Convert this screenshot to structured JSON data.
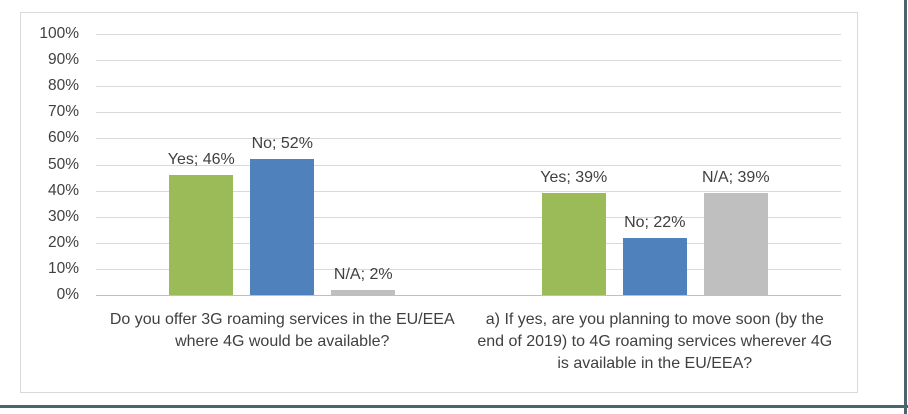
{
  "chart_data": {
    "type": "bar",
    "title": "",
    "categories": [
      "Do you offer 3G roaming services in the EU/EEA where 4G would be available?",
      "a) If yes, are you planning to move soon (by the end of 2019) to 4G roaming services wherever 4G is available in the EU/EEA?"
    ],
    "series": [
      {
        "name": "Yes",
        "color": "#9BBB59",
        "values": [
          46,
          39
        ]
      },
      {
        "name": "No",
        "color": "#4F81BD",
        "values": [
          52,
          22
        ]
      },
      {
        "name": "N/A",
        "color": "#BFBFBF",
        "values": [
          2,
          39
        ]
      }
    ],
    "data_labels": [
      [
        "Yes; 46%",
        "No; 52%",
        "N/A; 2%"
      ],
      [
        "Yes; 39%",
        "No; 22%",
        "N/A; 39%"
      ]
    ],
    "y_axis": {
      "min": 0,
      "max": 100,
      "step": 10,
      "tick_labels": [
        "0%",
        "10%",
        "20%",
        "30%",
        "40%",
        "50%",
        "60%",
        "70%",
        "80%",
        "90%",
        "100%"
      ]
    },
    "grid": true,
    "legend": "none",
    "colors": {
      "gridline": "#d9d9d9",
      "axis_line": "#bfbfbf",
      "text": "#404040",
      "chart_border": "#d9d9d9",
      "table_cell_border": "#4a6470",
      "background": "#ffffff"
    }
  }
}
